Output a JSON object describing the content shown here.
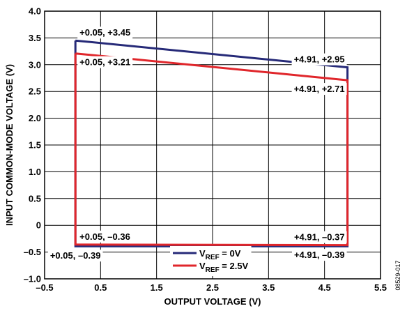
{
  "chart_data": {
    "type": "line",
    "xlabel": "OUTPUT VOLTAGE (V)",
    "ylabel": "INPUT COMMON-MODE VOLTAGE (V)",
    "xlim": [
      -0.5,
      5.5
    ],
    "ylim": [
      -1.0,
      4.0
    ],
    "x_ticks": [
      -0.5,
      0.5,
      1.5,
      2.5,
      3.5,
      4.5,
      5.5
    ],
    "x_tick_labels": [
      "–0.5",
      "0.5",
      "1.5",
      "2.5",
      "3.5",
      "4.5",
      "5.5"
    ],
    "y_ticks": [
      -1.0,
      -0.5,
      0,
      0.5,
      1.0,
      1.5,
      2.0,
      2.5,
      3.0,
      3.5,
      4.0
    ],
    "y_tick_labels": [
      "–1.0",
      "–0.5",
      "0",
      "0.5",
      "1.0",
      "1.5",
      "2.0",
      "2.5",
      "3.0",
      "3.5",
      "4.0"
    ],
    "grid": true,
    "legend_position": "bottom-center",
    "series": [
      {
        "legend_main": "V",
        "legend_sub": "REF",
        "legend_rest": " = 0V",
        "color": "#262a78",
        "x": [
          0.05,
          4.91,
          4.91,
          0.05,
          0.05
        ],
        "y": [
          3.45,
          2.95,
          -0.39,
          -0.39,
          3.45
        ]
      },
      {
        "legend_main": "V",
        "legend_sub": "REF",
        "legend_rest": " = 2.5V",
        "color": "#e0262b",
        "x": [
          0.05,
          4.91,
          4.91,
          0.05,
          0.05
        ],
        "y": [
          3.21,
          2.71,
          -0.37,
          -0.36,
          3.21
        ]
      }
    ],
    "annotations": [
      {
        "text": "+0.05, +3.45",
        "x": 0.05,
        "y": 3.45,
        "pos": "above-right"
      },
      {
        "text": "+0.05, +3.21",
        "x": 0.05,
        "y": 3.21,
        "pos": "below-right"
      },
      {
        "text": "+4.91, +2.95",
        "x": 4.91,
        "y": 2.95,
        "pos": "above-left"
      },
      {
        "text": "+4.91, +2.71",
        "x": 4.91,
        "y": 2.71,
        "pos": "below-left"
      },
      {
        "text": "+0.05, –0.36",
        "x": 0.05,
        "y": -0.36,
        "pos": "above-right"
      },
      {
        "text": "+0.05, –0.39",
        "x": 0.05,
        "y": -0.39,
        "pos": "below-center"
      },
      {
        "text": "+4.91, –0.37",
        "x": 4.91,
        "y": -0.37,
        "pos": "above-left"
      },
      {
        "text": "+4.91, –0.39",
        "x": 4.91,
        "y": -0.39,
        "pos": "below-left"
      }
    ]
  },
  "figure_id": "08529-017"
}
